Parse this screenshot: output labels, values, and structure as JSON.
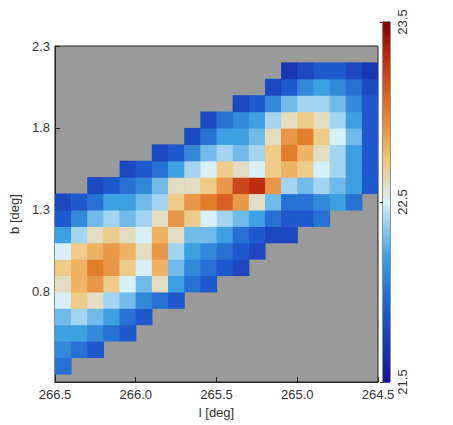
{
  "chart_data": {
    "type": "heatmap",
    "x_label": "l [deg]",
    "y_label": "b [deg]",
    "xlim": [
      266.5,
      264.5
    ],
    "ylim": [
      0.25,
      2.3
    ],
    "xticks": [
      266.5,
      {
        "value": 266,
        "label": "266.0"
      },
      265.5,
      {
        "value": 265,
        "label": "265.0"
      },
      264.5
    ],
    "yticks": [
      0.8,
      1.3,
      1.8,
      2.3
    ],
    "clim": [
      21.5,
      23.5
    ],
    "cticks": [
      21.5,
      22.5,
      23.5
    ],
    "grid": false,
    "x": [
      266.45,
      266.35,
      266.25,
      266.15,
      266.05,
      265.95,
      265.85,
      265.75,
      265.65,
      265.55,
      265.45,
      265.35,
      265.25,
      265.15,
      265.05,
      264.95,
      264.85,
      264.75,
      264.65,
      264.55
    ],
    "y": [
      0.35,
      0.45,
      0.55,
      0.65,
      0.75,
      0.85,
      0.95,
      1.05,
      1.15,
      1.25,
      1.35,
      1.45,
      1.55,
      1.65,
      1.75,
      1.85,
      1.95,
      2.05,
      2.15,
      2.25
    ],
    "values": [
      [
        22.0,
        null,
        null,
        null,
        null,
        null,
        null,
        null,
        null,
        null,
        null,
        null,
        null,
        null,
        null,
        null,
        null,
        null,
        null,
        null
      ],
      [
        22.1,
        22.0,
        21.9,
        null,
        null,
        null,
        null,
        null,
        null,
        null,
        null,
        null,
        null,
        null,
        null,
        null,
        null,
        null,
        null,
        null
      ],
      [
        22.2,
        22.2,
        22.1,
        22.0,
        21.9,
        null,
        null,
        null,
        null,
        null,
        null,
        null,
        null,
        null,
        null,
        null,
        null,
        null,
        null,
        null
      ],
      [
        22.3,
        22.4,
        22.3,
        22.2,
        22.0,
        21.9,
        null,
        null,
        null,
        null,
        null,
        null,
        null,
        null,
        null,
        null,
        null,
        null,
        null,
        null
      ],
      [
        22.5,
        22.7,
        22.6,
        22.4,
        22.3,
        22.1,
        22.0,
        21.9,
        null,
        null,
        null,
        null,
        null,
        null,
        null,
        null,
        null,
        null,
        null,
        null
      ],
      [
        22.6,
        22.8,
        22.9,
        22.7,
        22.5,
        22.3,
        22.6,
        22.2,
        22.0,
        21.9,
        null,
        null,
        null,
        null,
        null,
        null,
        null,
        null,
        null,
        null
      ],
      [
        22.7,
        22.8,
        23.0,
        22.9,
        22.7,
        22.5,
        22.8,
        22.3,
        22.1,
        22.0,
        21.9,
        21.8,
        null,
        null,
        null,
        null,
        null,
        null,
        null,
        null
      ],
      [
        22.5,
        22.7,
        22.8,
        22.9,
        22.8,
        22.6,
        22.9,
        22.4,
        22.2,
        22.1,
        22.0,
        21.9,
        21.8,
        null,
        null,
        null,
        null,
        null,
        null,
        null
      ],
      [
        22.2,
        22.4,
        22.6,
        22.7,
        22.6,
        22.5,
        22.8,
        22.6,
        22.3,
        22.3,
        22.2,
        22.0,
        21.9,
        21.8,
        21.8,
        null,
        null,
        null,
        null,
        null
      ],
      [
        21.9,
        22.1,
        22.3,
        22.4,
        22.3,
        22.4,
        22.6,
        22.9,
        22.7,
        22.5,
        22.4,
        22.3,
        22.2,
        22.0,
        21.9,
        21.9,
        22.0,
        null,
        null,
        null
      ],
      [
        21.8,
        21.9,
        22.0,
        22.2,
        22.2,
        22.3,
        22.4,
        22.7,
        22.9,
        23.0,
        23.1,
        22.9,
        22.6,
        22.3,
        22.0,
        22.0,
        22.1,
        22.2,
        22.0,
        null
      ],
      [
        null,
        null,
        21.8,
        21.9,
        22.0,
        22.1,
        22.3,
        22.6,
        22.6,
        22.7,
        22.9,
        23.2,
        23.3,
        22.9,
        22.4,
        22.3,
        22.4,
        22.3,
        22.2,
        21.9
      ],
      [
        null,
        null,
        null,
        null,
        21.8,
        21.9,
        22.0,
        22.2,
        22.4,
        22.5,
        22.7,
        22.6,
        22.5,
        22.7,
        22.8,
        22.7,
        22.5,
        22.4,
        22.2,
        21.9
      ],
      [
        null,
        null,
        null,
        null,
        null,
        null,
        21.8,
        21.9,
        22.1,
        22.3,
        22.4,
        22.3,
        22.4,
        22.7,
        23.0,
        22.8,
        22.6,
        22.4,
        22.2,
        21.9
      ],
      [
        null,
        null,
        null,
        null,
        null,
        null,
        null,
        null,
        21.8,
        22.0,
        22.2,
        22.2,
        22.3,
        22.6,
        22.9,
        23.0,
        22.7,
        22.5,
        22.3,
        21.9
      ],
      [
        null,
        null,
        null,
        null,
        null,
        null,
        null,
        null,
        null,
        21.8,
        22.0,
        22.1,
        22.2,
        22.4,
        22.6,
        22.7,
        22.6,
        22.4,
        22.2,
        21.9
      ],
      [
        null,
        null,
        null,
        null,
        null,
        null,
        null,
        null,
        null,
        null,
        null,
        21.8,
        21.9,
        22.1,
        22.3,
        22.4,
        22.4,
        22.3,
        22.1,
        21.9
      ],
      [
        null,
        null,
        null,
        null,
        null,
        null,
        null,
        null,
        null,
        null,
        null,
        null,
        null,
        21.8,
        21.9,
        22.1,
        22.2,
        22.1,
        22.0,
        21.8
      ],
      [
        null,
        null,
        null,
        null,
        null,
        null,
        null,
        null,
        null,
        null,
        null,
        null,
        null,
        null,
        21.7,
        21.8,
        21.9,
        21.9,
        21.8,
        21.7
      ],
      [
        null,
        null,
        null,
        null,
        null,
        null,
        null,
        null,
        null,
        null,
        null,
        null,
        null,
        null,
        null,
        null,
        null,
        null,
        null,
        null
      ]
    ]
  }
}
